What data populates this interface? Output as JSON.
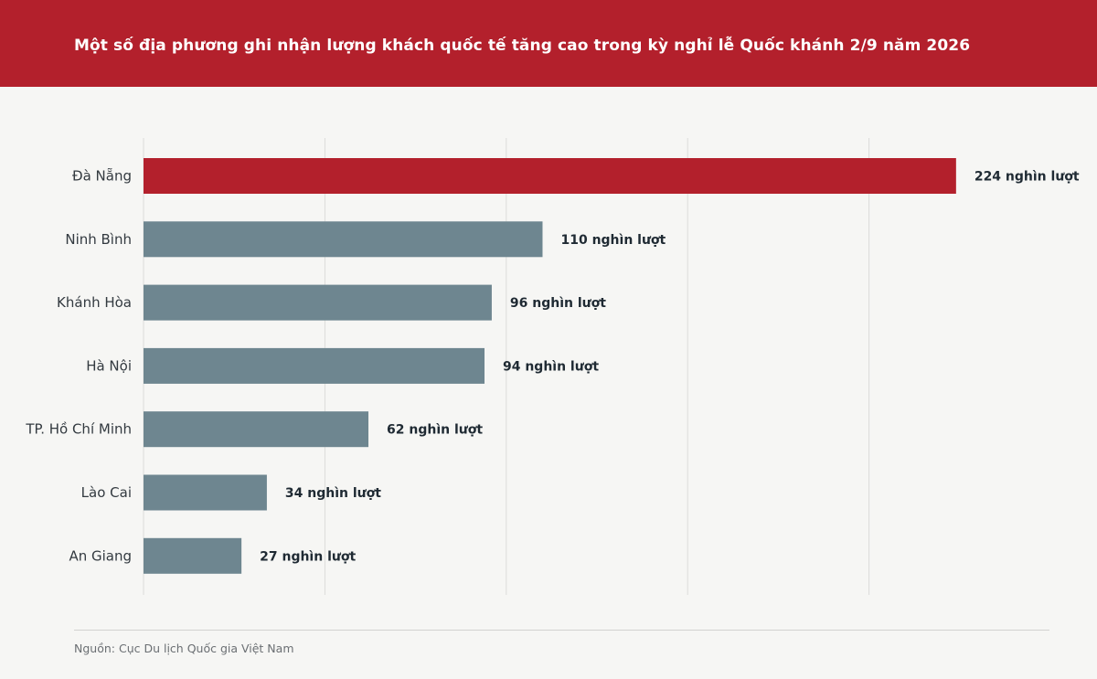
{
  "header": {
    "title": "Một số địa phương ghi nhận lượng khách quốc tế tăng cao trong kỳ nghỉ lễ Quốc khánh 2/9 năm 2026"
  },
  "footer": {
    "source": "Nguồn: Cục Du lịch Quốc gia Việt Nam"
  },
  "colors": {
    "highlight": "#b3202c",
    "bar": "#6e8690",
    "grid": "#dcdcda",
    "background": "#f6f6f4"
  },
  "chart_data": {
    "type": "bar",
    "orientation": "horizontal",
    "title": "Một số địa phương ghi nhận lượng khách quốc tế tăng cao trong kỳ nghỉ lễ Quốc khánh 2/9 năm 2026",
    "categories": [
      "Đà Nẵng",
      "Ninh Bình",
      "Khánh Hòa",
      "Hà Nội",
      "TP. Hồ Chí Minh",
      "Lào Cai",
      "An Giang"
    ],
    "values": [
      224,
      110,
      96,
      94,
      62,
      34,
      27
    ],
    "value_labels": [
      "224 nghìn lượt",
      "110 nghìn lượt",
      "96 nghìn lượt",
      "94 nghìn lượt",
      "62 nghìn lượt",
      "34 nghìn lượt",
      "27 nghìn lượt"
    ],
    "unit": "nghìn lượt",
    "highlight_index": 0,
    "xlim": [
      0,
      250
    ],
    "grid": true,
    "grid_step": 50,
    "xlabel": "",
    "ylabel": ""
  }
}
